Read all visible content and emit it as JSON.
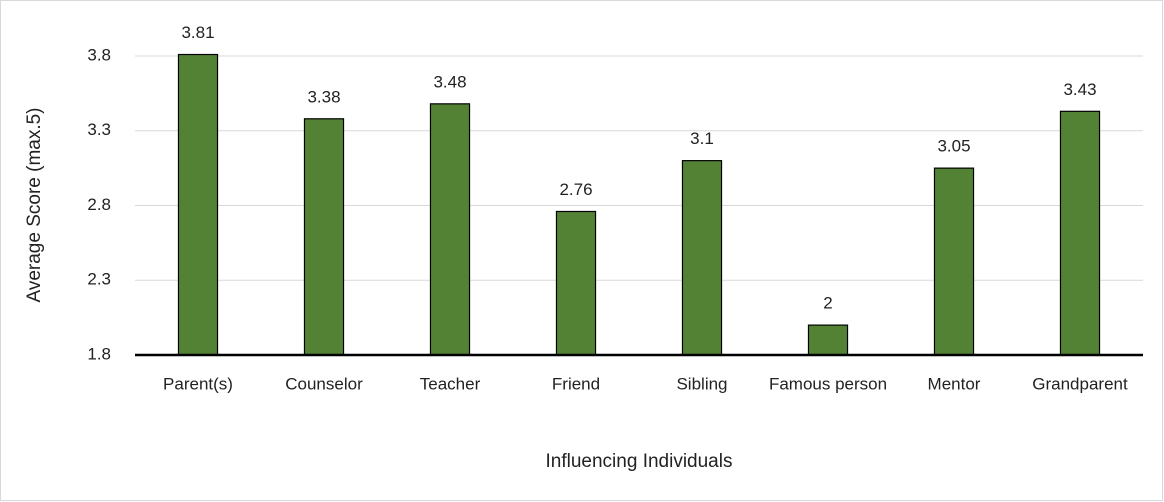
{
  "chart_data": {
    "type": "bar",
    "categories": [
      "Parent(s)",
      "Counselor",
      "Teacher",
      "Friend",
      "Sibling",
      "Famous person",
      "Mentor",
      "Grandparent"
    ],
    "values": [
      3.81,
      3.38,
      3.48,
      2.76,
      3.1,
      2,
      3.05,
      3.43
    ],
    "color": "#548235",
    "ylim": [
      1.8,
      3.8
    ],
    "yticks": [
      1.8,
      2.3,
      2.8,
      3.3,
      3.8
    ],
    "grid": true,
    "ylabel": "Average Score (max.5)",
    "xlabel": "Influencing Individuals"
  }
}
